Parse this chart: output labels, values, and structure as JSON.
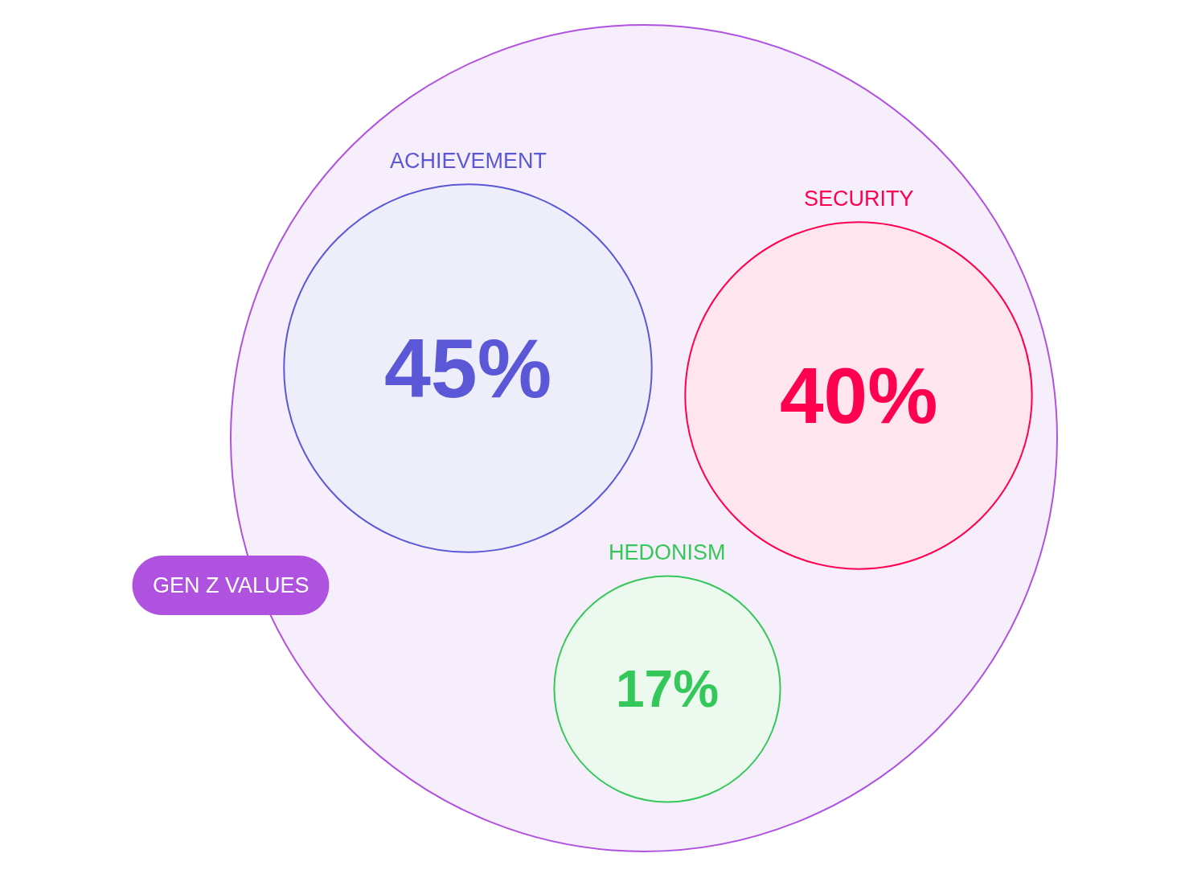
{
  "chart_data": {
    "type": "other",
    "title": "GEN Z VALUES",
    "color": "#b052e0",
    "categories": [
      "ACHIEVEMENT",
      "SECURITY",
      "HEDONISM"
    ],
    "values": [
      45,
      40,
      17
    ],
    "value_labels": [
      "45%",
      "40%",
      "17%"
    ],
    "colors": [
      "#5a58d6",
      "#ff0050",
      "#34c759"
    ]
  }
}
